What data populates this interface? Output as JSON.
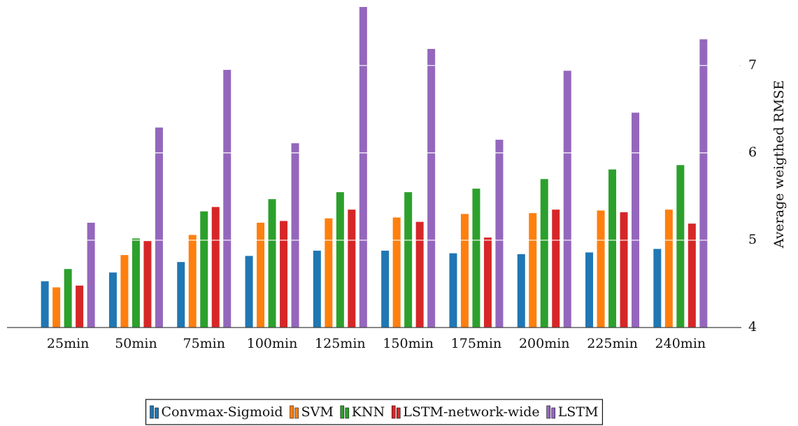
{
  "chart_data": {
    "type": "bar",
    "y_axis_label": "Average weigthed RMSE",
    "categories": [
      "25min",
      "50min",
      "75min",
      "100min",
      "125min",
      "150min",
      "175min",
      "200min",
      "225min",
      "240min"
    ],
    "series": [
      {
        "name": "Convmax-Sigmoid",
        "color": "#1f77b4",
        "values": [
          4.53,
          4.63,
          4.75,
          4.82,
          4.88,
          4.88,
          4.85,
          4.84,
          4.86,
          4.9
        ]
      },
      {
        "name": "SVM",
        "color": "#ff7f0e",
        "values": [
          4.46,
          4.83,
          5.06,
          5.2,
          5.25,
          5.26,
          5.3,
          5.31,
          5.34,
          5.35
        ]
      },
      {
        "name": "KNN",
        "color": "#2ca02c",
        "values": [
          4.67,
          5.02,
          5.33,
          5.47,
          5.55,
          5.55,
          5.59,
          5.7,
          5.81,
          5.86
        ]
      },
      {
        "name": "LSTM-network-wide",
        "color": "#d62728",
        "values": [
          4.48,
          4.99,
          5.38,
          5.22,
          5.35,
          5.21,
          5.03,
          5.35,
          5.32,
          5.19
        ]
      },
      {
        "name": "LSTM",
        "color": "#9467bd",
        "values": [
          5.2,
          6.29,
          6.95,
          6.11,
          7.67,
          7.19,
          6.15,
          6.94,
          6.46,
          7.3
        ]
      }
    ],
    "ylim": [
      4,
      7.75
    ],
    "yticks": [
      4,
      5,
      6,
      7
    ],
    "grid": true,
    "legend": "bottom"
  }
}
